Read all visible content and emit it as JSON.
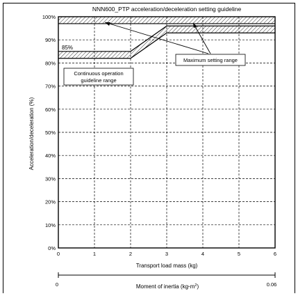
{
  "chart_data": {
    "type": "area",
    "title": "NNN600_PTP acceleration/deceleration setting guideline",
    "xlabel": "Transport load mass (kg)",
    "ylabel": "Acceleration/deceleration (%)",
    "xlim": [
      0,
      6
    ],
    "ylim": [
      0,
      100
    ],
    "x_ticks": [
      "0",
      "1",
      "2",
      "3",
      "4",
      "5",
      "6"
    ],
    "y_ticks": [
      "0%",
      "10%",
      "20%",
      "30%",
      "40%",
      "50%",
      "60%",
      "70%",
      "80%",
      "90%",
      "100%"
    ],
    "grid": true,
    "series": [
      {
        "name": "Maximum setting range",
        "x": [
          0,
          2,
          3,
          6
        ],
        "y": [
          100,
          100,
          100,
          100
        ]
      },
      {
        "name": "Continuous operation guideline range",
        "x": [
          0,
          2,
          3,
          6
        ],
        "y": [
          85,
          85,
          96,
          96
        ]
      }
    ],
    "annotations": {
      "line_label": "85%",
      "maximum_label": "Maximum setting range",
      "continuous_label_line1": "Continuous operation",
      "continuous_label_line2": "guideline range"
    },
    "secondary_axis": {
      "label": "Moment of inertia (kg·m²)",
      "label_main": "Moment of inertia (kg",
      "label_dot": "·",
      "label_unit": "m",
      "label_sup": "2",
      "label_close": ")",
      "min_label": "0",
      "max_label": "0.06"
    }
  }
}
